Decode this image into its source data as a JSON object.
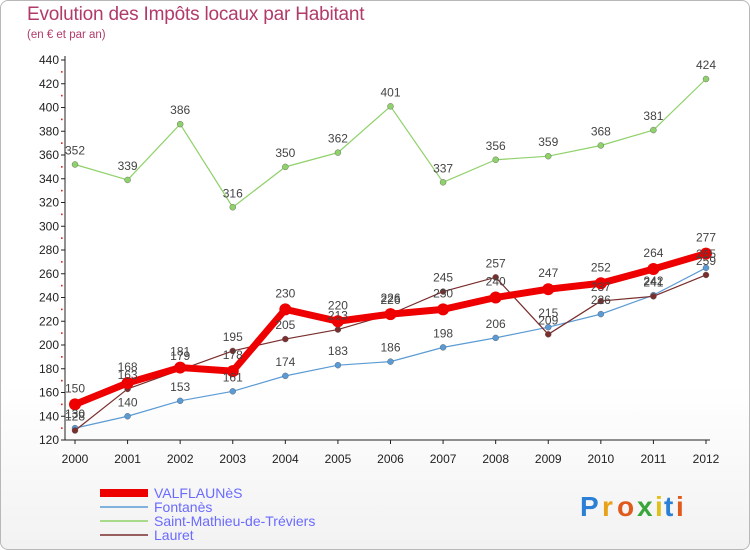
{
  "title": "Evolution des Impôts locaux par Habitant",
  "subtitle": "(en € et par an)",
  "logo": {
    "letters": [
      "P",
      "r",
      "o",
      "x",
      "i",
      "t",
      "i"
    ],
    "colors": [
      "#2c7fd6",
      "#e8a21a",
      "#e05a1c",
      "#3aa63a",
      "#e0c01a",
      "#2c7fd6",
      "#e05a1c"
    ]
  },
  "chart_data": {
    "type": "line",
    "x": [
      2000,
      2001,
      2002,
      2003,
      2004,
      2005,
      2006,
      2007,
      2008,
      2009,
      2010,
      2011,
      2012
    ],
    "ylim": [
      120,
      440
    ],
    "yticks": [
      120,
      140,
      160,
      180,
      200,
      220,
      240,
      260,
      280,
      300,
      320,
      340,
      360,
      380,
      400,
      420,
      440
    ],
    "grid": false,
    "legend_position": "bottom-left",
    "series": [
      {
        "name": "VALFLAUNèS",
        "color": "#ee0000",
        "values": [
          150,
          168,
          181,
          178,
          230,
          220,
          226,
          230,
          240,
          247,
          252,
          264,
          277
        ]
      },
      {
        "name": "Fontanès",
        "color": "#5b9bd5",
        "values": [
          130,
          140,
          153,
          161,
          174,
          183,
          186,
          198,
          206,
          215,
          226,
          242,
          265
        ]
      },
      {
        "name": "Saint-Mathieu-de-Tréviers",
        "color": "#8fd16a",
        "values": [
          352,
          339,
          386,
          316,
          350,
          362,
          401,
          337,
          356,
          359,
          368,
          381,
          424
        ]
      },
      {
        "name": "Lauret",
        "color": "#7a2e2e",
        "values": [
          128,
          163,
          179,
          195,
          205,
          213,
          226,
          245,
          257,
          209,
          237,
          241,
          259
        ]
      }
    ],
    "labels": [
      [
        "150",
        "168",
        "181",
        "178",
        "230",
        "220",
        "226",
        "230",
        "240",
        "247",
        "252",
        "264",
        "277"
      ],
      [
        "130",
        "140",
        "153",
        "161",
        "174",
        "183",
        "186",
        "198",
        "206",
        "215",
        "226",
        "242",
        "265"
      ],
      [
        "352",
        "339",
        "386",
        "316",
        "350",
        "362",
        "401",
        "337",
        "356",
        "359",
        "368",
        "381",
        "424"
      ],
      [
        "128",
        "163",
        "179",
        "195",
        "205",
        "213",
        "226",
        "245",
        "257",
        "209",
        "237",
        "241",
        "259"
      ]
    ]
  }
}
